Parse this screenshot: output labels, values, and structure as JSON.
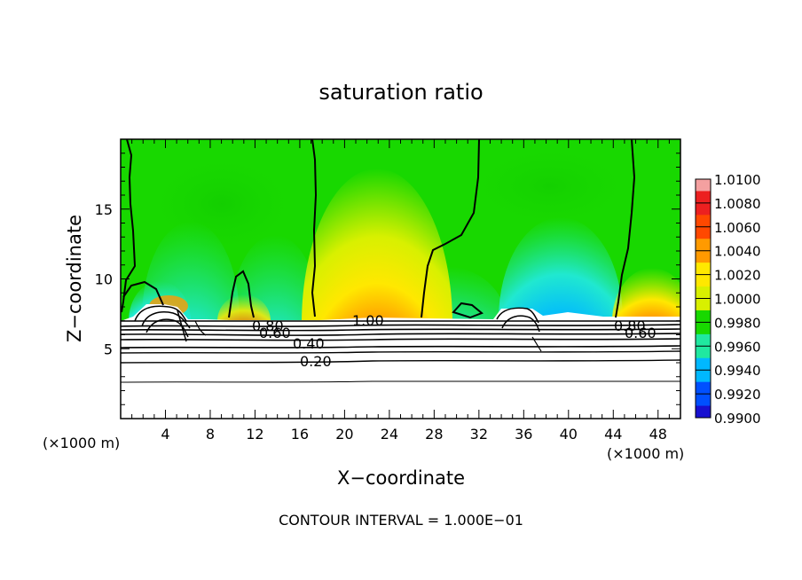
{
  "chart_data": {
    "type": "heatmap",
    "title": "saturation ratio",
    "xlabel": "X−coordinate",
    "ylabel": "Z−coordinate",
    "x_unit_left": "(×1000 m)",
    "x_unit_right": "(×1000 m)",
    "xlim": [
      0,
      50
    ],
    "ylim": [
      0,
      20
    ],
    "x_ticks": [
      4,
      8,
      12,
      16,
      20,
      24,
      28,
      32,
      36,
      40,
      44,
      48
    ],
    "y_ticks": [
      5,
      10,
      15
    ],
    "footer": "CONTOUR INTERVAL = 1.000E−01",
    "colorbar": {
      "levels": [
        "1.0100",
        "1.0080",
        "1.0060",
        "1.0040",
        "1.0020",
        "1.0000",
        "0.9980",
        "0.9960",
        "0.9940",
        "0.9920",
        "0.9900"
      ],
      "colors": [
        "#f4a0a0",
        "#ec2020",
        "#ff4800",
        "#ff9a00",
        "#ffe800",
        "#d8f000",
        "#18d800",
        "#20e8a0",
        "#00b8ff",
        "#0050ff",
        "#1810d0",
        "#6a10a0"
      ]
    },
    "contour_labels": [
      {
        "text": "1.00"
      },
      {
        "text": "0.80"
      },
      {
        "text": "0.60"
      },
      {
        "text": "0.40"
      },
      {
        "text": "0.20"
      },
      {
        "text": "0.80"
      },
      {
        "text": "0.60"
      }
    ],
    "contour_levels": [
      0.2,
      0.4,
      0.6,
      0.8,
      1.0
    ]
  }
}
